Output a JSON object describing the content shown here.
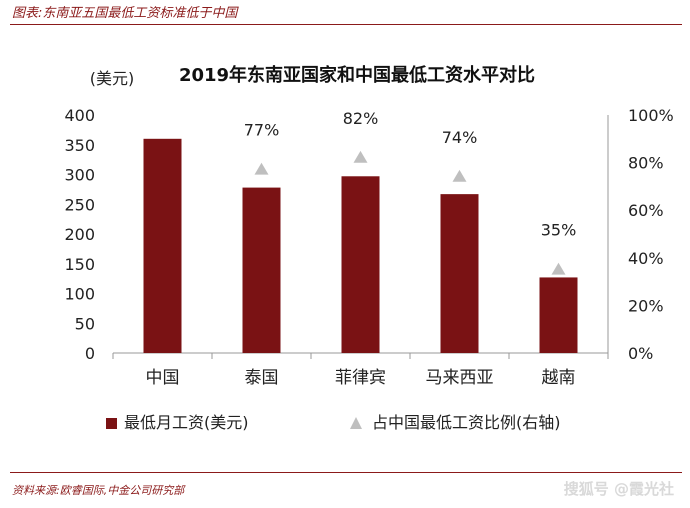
{
  "figure": {
    "title": "图表:东南亚五国最低工资标准低于中国",
    "source": "资料来源:欧睿国际,中金公司研究部",
    "watermark": "搜狐号 @霞光社"
  },
  "chart_data": {
    "type": "bar",
    "title": "2019年东南亚国家和中国最低工资水平对比",
    "y_unit_label": "(美元)",
    "categories": [
      "中国",
      "泰国",
      "菲律宾",
      "马来西亚",
      "越南"
    ],
    "series": [
      {
        "name": "最低月工资(美元)",
        "type": "bar",
        "axis": "left",
        "color": "#7a1214",
        "values": [
          360,
          278,
          297,
          267,
          127
        ]
      },
      {
        "name": "占中国最低工资比例(右轴)",
        "type": "scatter",
        "marker": "triangle",
        "axis": "right",
        "color": "#bfbfbf",
        "values": [
          null,
          0.77,
          0.82,
          0.74,
          0.35
        ],
        "labels": [
          "",
          "77%",
          "82%",
          "74%",
          "35%"
        ]
      }
    ],
    "y_left": {
      "min": 0,
      "max": 400,
      "ticks": [
        "0",
        "50",
        "100",
        "150",
        "200",
        "250",
        "300",
        "350",
        "400"
      ]
    },
    "y_right": {
      "min": 0,
      "max": 1,
      "ticks": [
        "0%",
        "20%",
        "40%",
        "60%",
        "80%",
        "100%"
      ]
    },
    "legend_position": "bottom",
    "grid": false
  }
}
